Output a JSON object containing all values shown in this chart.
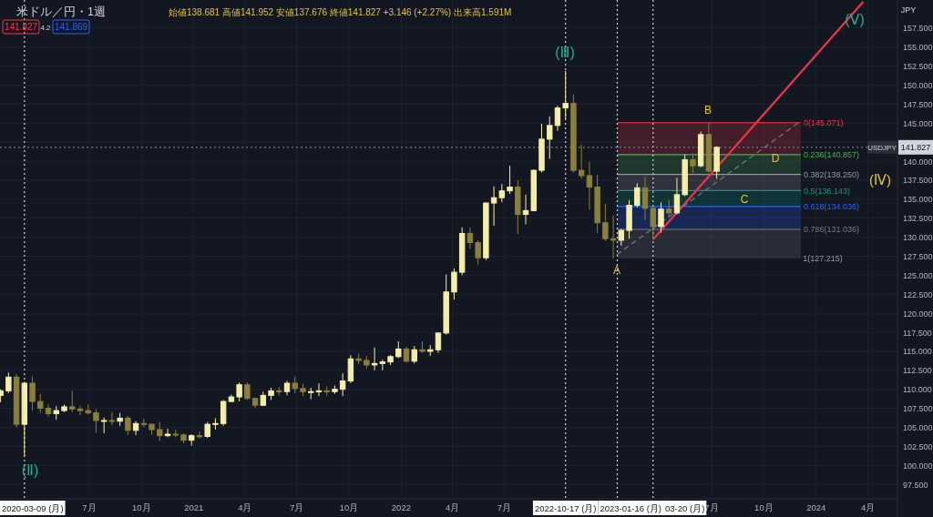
{
  "chart_data": {
    "type": "candlestick",
    "title": "米ドル／円・1週",
    "annotations": [
      "始値138.681 高値141.952 安値137.676 終値141.827 +3.146 (+2.27%) 出来高1.591M",
      "141.827",
      "4.2",
      "141.869",
      "JPY",
      "(Ⅱ)",
      "(Ⅲ)",
      "(Ⅳ)",
      "(Ⅴ)",
      "A",
      "B",
      "C",
      "D",
      {
        "text": "1(127.215)",
        "x": "2023-12-04",
        "y": 127.215
      }
    ],
    "x": [
      "2020-01-27",
      "2020-02-10",
      "2020-02-24",
      "2020-03-09",
      "2020-03-23",
      "2020-04-06",
      "2020-04-20",
      "2020-05-04",
      "2020-05-18",
      "2020-06-01",
      "2020-06-15",
      "2020-06-29",
      "2020-07-13",
      "2020-07-27",
      "2020-08-10",
      "2020-08-24",
      "2020-09-07",
      "2020-09-21",
      "2020-10-05",
      "2020-10-19",
      "2020-11-02",
      "2020-11-16",
      "2020-11-30",
      "2020-12-14",
      "2020-12-28",
      "2021-01-11",
      "2021-01-25",
      "2021-02-08",
      "2021-02-22",
      "2021-03-08",
      "2021-03-22",
      "2021-04-05",
      "2021-04-19",
      "2021-05-03",
      "2021-05-17",
      "2021-05-31",
      "2021-06-14",
      "2021-06-28",
      "2021-07-12",
      "2021-07-26",
      "2021-08-09",
      "2021-08-23",
      "2021-09-06",
      "2021-09-20",
      "2021-10-04",
      "2021-10-18",
      "2021-11-01",
      "2021-11-15",
      "2021-11-29",
      "2021-12-13",
      "2021-12-27",
      "2022-01-10",
      "2022-01-24",
      "2022-02-07",
      "2022-02-21",
      "2022-03-07",
      "2022-03-21",
      "2022-04-04",
      "2022-04-18",
      "2022-05-02",
      "2022-05-16",
      "2022-05-30",
      "2022-06-13",
      "2022-06-27",
      "2022-07-11",
      "2022-07-25",
      "2022-08-08",
      "2022-08-22",
      "2022-09-05",
      "2022-09-19",
      "2022-10-03",
      "2022-10-17",
      "2022-10-31",
      "2022-11-14",
      "2022-11-28",
      "2022-12-12",
      "2022-12-26",
      "2023-01-09",
      "2023-01-23",
      "2023-02-06",
      "2023-02-20",
      "2023-03-06",
      "2023-03-20",
      "2023-04-03",
      "2023-04-17",
      "2023-05-01",
      "2023-05-15",
      "2023-05-29",
      "2023-06-12",
      "2023-06-26",
      "2023-07-10"
    ],
    "ohlc": [
      [
        109.2,
        110.0,
        108.3,
        109.8
      ],
      [
        109.8,
        112.2,
        109.5,
        111.6
      ],
      [
        111.6,
        112.0,
        105.0,
        105.4
      ],
      [
        105.4,
        111.0,
        101.2,
        110.8
      ],
      [
        110.8,
        111.7,
        107.2,
        108.4
      ],
      [
        108.4,
        109.4,
        106.9,
        107.5
      ],
      [
        107.5,
        108.0,
        106.4,
        106.8
      ],
      [
        106.8,
        107.8,
        106.0,
        107.2
      ],
      [
        107.2,
        108.0,
        107.0,
        107.7
      ],
      [
        107.7,
        109.8,
        107.0,
        107.4
      ],
      [
        107.4,
        107.8,
        106.6,
        107.2
      ],
      [
        107.2,
        108.0,
        106.7,
        106.9
      ],
      [
        106.9,
        107.4,
        104.3,
        105.9
      ],
      [
        105.9,
        106.3,
        104.2,
        105.9
      ],
      [
        105.9,
        107.0,
        105.3,
        105.8
      ],
      [
        105.8,
        106.9,
        105.2,
        106.2
      ],
      [
        106.2,
        106.5,
        104.0,
        104.6
      ],
      [
        104.6,
        105.8,
        104.0,
        105.5
      ],
      [
        105.5,
        106.1,
        105.0,
        105.4
      ],
      [
        105.4,
        105.5,
        104.0,
        104.7
      ],
      [
        104.7,
        105.7,
        103.2,
        103.9
      ],
      [
        103.9,
        104.8,
        103.7,
        104.1
      ],
      [
        104.1,
        104.7,
        103.7,
        104.0
      ],
      [
        104.0,
        104.2,
        102.9,
        103.3
      ],
      [
        103.3,
        104.1,
        102.6,
        103.9
      ],
      [
        103.9,
        104.4,
        103.5,
        103.8
      ],
      [
        103.8,
        105.7,
        103.6,
        105.4
      ],
      [
        105.4,
        106.2,
        104.7,
        105.5
      ],
      [
        105.5,
        108.6,
        105.2,
        108.4
      ],
      [
        108.4,
        109.3,
        108.3,
        109.0
      ],
      [
        109.0,
        110.9,
        108.4,
        110.6
      ],
      [
        110.6,
        110.9,
        108.6,
        108.8
      ],
      [
        108.8,
        108.9,
        107.5,
        107.9
      ],
      [
        107.9,
        109.7,
        107.8,
        109.2
      ],
      [
        109.2,
        110.2,
        108.6,
        109.8
      ],
      [
        109.8,
        110.3,
        109.2,
        109.7
      ],
      [
        109.7,
        111.1,
        109.2,
        110.8
      ],
      [
        110.8,
        111.7,
        109.5,
        110.1
      ],
      [
        110.1,
        110.7,
        109.1,
        109.7
      ],
      [
        109.7,
        110.2,
        108.7,
        109.7
      ],
      [
        109.7,
        110.8,
        109.1,
        109.8
      ],
      [
        109.8,
        110.4,
        109.2,
        109.7
      ],
      [
        109.7,
        110.5,
        109.4,
        110.0
      ],
      [
        110.0,
        112.1,
        109.1,
        111.1
      ],
      [
        111.1,
        114.5,
        110.8,
        114.0
      ],
      [
        114.0,
        114.7,
        113.3,
        113.8
      ],
      [
        113.8,
        114.4,
        112.7,
        113.2
      ],
      [
        113.2,
        115.5,
        112.5,
        113.4
      ],
      [
        113.4,
        113.9,
        112.5,
        113.6
      ],
      [
        113.6,
        114.5,
        113.2,
        114.3
      ],
      [
        114.3,
        116.3,
        114.1,
        115.3
      ],
      [
        115.3,
        115.6,
        113.5,
        113.7
      ],
      [
        113.7,
        115.7,
        113.4,
        115.2
      ],
      [
        115.2,
        116.3,
        114.8,
        115.0
      ],
      [
        115.0,
        115.8,
        114.4,
        115.2
      ],
      [
        115.2,
        117.5,
        114.8,
        117.4
      ],
      [
        117.4,
        125.1,
        117.2,
        122.8
      ],
      [
        122.8,
        125.9,
        121.8,
        125.4
      ],
      [
        125.4,
        131.3,
        125.0,
        130.5
      ],
      [
        130.5,
        131.3,
        128.5,
        129.3
      ],
      [
        129.3,
        129.6,
        126.4,
        127.3
      ],
      [
        127.3,
        134.6,
        127.0,
        134.5
      ],
      [
        134.5,
        136.7,
        131.5,
        135.2
      ],
      [
        135.2,
        137.0,
        134.6,
        136.1
      ],
      [
        136.1,
        139.4,
        135.7,
        136.6
      ],
      [
        136.6,
        137.5,
        130.4,
        133.0
      ],
      [
        133.0,
        135.6,
        131.7,
        133.5
      ],
      [
        133.5,
        138.9,
        133.4,
        138.8
      ],
      [
        138.8,
        144.9,
        138.5,
        142.9
      ],
      [
        142.9,
        145.9,
        140.3,
        144.7
      ],
      [
        144.7,
        147.3,
        144.0,
        147.0
      ],
      [
        147.0,
        151.9,
        145.5,
        147.6
      ],
      [
        147.6,
        148.8,
        138.5,
        138.8
      ],
      [
        138.8,
        142.2,
        137.7,
        138.1
      ],
      [
        138.1,
        139.9,
        133.6,
        136.6
      ],
      [
        136.6,
        138.2,
        130.6,
        131.9
      ],
      [
        131.9,
        134.4,
        129.5,
        129.8
      ],
      [
        129.8,
        132.9,
        127.2,
        129.6
      ],
      [
        129.6,
        131.1,
        128.9,
        130.9
      ],
      [
        130.9,
        134.9,
        129.8,
        134.2
      ],
      [
        134.2,
        137.1,
        133.9,
        136.5
      ],
      [
        136.5,
        138.0,
        132.3,
        133.8
      ],
      [
        133.8,
        134.0,
        129.7,
        131.4
      ],
      [
        131.4,
        134.6,
        130.6,
        133.7
      ],
      [
        133.7,
        134.9,
        132.7,
        133.2
      ],
      [
        133.2,
        137.8,
        133.0,
        135.6
      ],
      [
        135.6,
        140.9,
        135.4,
        140.2
      ],
      [
        140.2,
        141.0,
        138.4,
        139.4
      ],
      [
        139.4,
        143.9,
        139.2,
        143.5
      ],
      [
        143.5,
        145.1,
        138.5,
        138.7
      ],
      [
        138.681,
        141.952,
        137.676,
        141.827
      ]
    ],
    "colors": [
      "#f5eeaa",
      "#f5eeaa",
      "#8a7f3c",
      "#f5eeaa",
      "#8a7f3c",
      "#8a7f3c",
      "#8a7f3c",
      "#f5eeaa",
      "#f5eeaa",
      "#8a7f3c",
      "#8a7f3c",
      "#8a7f3c",
      "#8a7f3c",
      "#f5eeaa",
      "#8a7f3c",
      "#f5eeaa",
      "#8a7f3c",
      "#f5eeaa",
      "#8a7f3c",
      "#8a7f3c",
      "#8a7f3c",
      "#f5eeaa",
      "#8a7f3c",
      "#8a7f3c",
      "#f5eeaa",
      "#8a7f3c",
      "#f5eeaa",
      "#f5eeaa",
      "#f5eeaa",
      "#f5eeaa",
      "#f5eeaa",
      "#8a7f3c",
      "#8a7f3c",
      "#f5eeaa",
      "#f5eeaa",
      "#8a7f3c",
      "#f5eeaa",
      "#8a7f3c",
      "#8a7f3c",
      "#f5eeaa",
      "#f5eeaa",
      "#8a7f3c",
      "#f5eeaa",
      "#f5eeaa",
      "#f5eeaa",
      "#8a7f3c",
      "#8a7f3c",
      "#f5eeaa",
      "#f5eeaa",
      "#f5eeaa",
      "#f5eeaa",
      "#8a7f3c",
      "#f5eeaa",
      "#8a7f3c",
      "#f5eeaa",
      "#f5eeaa",
      "#f5eeaa",
      "#f5eeaa",
      "#f5eeaa",
      "#8a7f3c",
      "#8a7f3c",
      "#f5eeaa",
      "#f5eeaa",
      "#f5eeaa",
      "#f5eeaa",
      "#8a7f3c",
      "#f5eeaa",
      "#f5eeaa",
      "#f5eeaa",
      "#f5eeaa",
      "#f5eeaa",
      "#f5eeaa",
      "#8a7f3c",
      "#8a7f3c",
      "#8a7f3c",
      "#8a7f3c",
      "#8a7f3c",
      "#8a7f3c",
      "#f5eeaa",
      "#f5eeaa",
      "#f5eeaa",
      "#8a7f3c",
      "#8a7f3c",
      "#f5eeaa",
      "#8a7f3c",
      "#f5eeaa",
      "#f5eeaa",
      "#8a7f3c",
      "#f5eeaa",
      "#8a7f3c",
      "#f5eeaa"
    ],
    "series": [
      {
        "type": "line",
        "x": [
          "2023-03-20",
          "2024-03-24"
        ],
        "values": [
          129.7,
          161.0
        ],
        "color": "#f23645",
        "line_style": "solid"
      },
      {
        "type": "line",
        "x": [
          "2023-01-15",
          "2023-12-05"
        ],
        "values": [
          127.7,
          145.3
        ],
        "color": "#787b86",
        "line_style": "dashed"
      }
    ],
    "bands": [
      {
        "axis": "y",
        "from": 145.071,
        "to": 140.857,
        "label": "0(145.071)",
        "color": "#f23645"
      },
      {
        "axis": "y",
        "from": 140.857,
        "to": 138.25,
        "label": "0.236(140.857)",
        "color": "#4caf50"
      },
      {
        "axis": "y",
        "from": 138.25,
        "to": 136.143,
        "label": "0.382(138.250)",
        "color": "#9598a1"
      },
      {
        "axis": "y",
        "from": 136.143,
        "to": 134.036,
        "label": "0.5(136.143)",
        "color": "#089981"
      },
      {
        "axis": "y",
        "from": 134.036,
        "to": 131.036,
        "label": "0.618(134.036)",
        "color": "#2962ff"
      },
      {
        "axis": "y",
        "from": 131.036,
        "to": 127.215,
        "label": "0.786(131.036)",
        "color": "#787b86"
      }
    ],
    "ref_lines": [
      {
        "axis": "x",
        "value": "2020-03-09",
        "label": "2020-03-09 (月)",
        "color": "#d1d4dc",
        "line_style": "dotted"
      },
      {
        "axis": "x",
        "value": "2022-10-17",
        "label": "2022-10-17 (月)",
        "color": "#d1d4dc",
        "line_style": "dotted"
      },
      {
        "axis": "x",
        "value": "2023-01-16",
        "label": "2023-01-16 (月)",
        "color": "#d1d4dc",
        "line_style": "dotted"
      },
      {
        "axis": "x",
        "value": "2023-03-20",
        "label": "03-20 (月)",
        "color": "#d1d4dc",
        "line_style": "dotted"
      },
      {
        "axis": "y",
        "value": 141.827,
        "label": "USDJPY",
        "color": "#787b86",
        "line_style": "dotted"
      }
    ],
    "xlim": [
      "2020-01-26",
      "2024-05-23"
    ],
    "xticks": [
      {
        "value": "2020-07-01",
        "label": "7月"
      },
      {
        "value": "2020-10-01",
        "label": "10月"
      },
      {
        "value": "2021-01-01",
        "label": "2021"
      },
      {
        "value": "2021-04-01",
        "label": "4月"
      },
      {
        "value": "2021-07-01",
        "label": "7月"
      },
      {
        "value": "2021-10-01",
        "label": "10月"
      },
      {
        "value": "2022-01-01",
        "label": "2022"
      },
      {
        "value": "2022-04-01",
        "label": "4月"
      },
      {
        "value": "2022-07-01",
        "label": "7月"
      },
      {
        "value": "2023-07-01",
        "label": "7月"
      },
      {
        "value": "2023-10-01",
        "label": "10月"
      },
      {
        "value": "2024-01-01",
        "label": "2024"
      },
      {
        "value": "2024-04-01",
        "label": "4月"
      }
    ],
    "ylim": [
      95.6,
      161.2
    ],
    "yticks": [
      {
        "value": 97.5,
        "label": "97.500"
      },
      {
        "value": 100,
        "label": "100.000"
      },
      {
        "value": 102.5,
        "label": "102.500"
      },
      {
        "value": 105,
        "label": "105.000"
      },
      {
        "value": 107.5,
        "label": "107.500"
      },
      {
        "value": 110,
        "label": "110.000"
      },
      {
        "value": 112.5,
        "label": "112.500"
      },
      {
        "value": 115,
        "label": "115.000"
      },
      {
        "value": 117.5,
        "label": "117.500"
      },
      {
        "value": 120,
        "label": "120.000"
      },
      {
        "value": 122.5,
        "label": "122.500"
      },
      {
        "value": 125,
        "label": "125.000"
      },
      {
        "value": 127.5,
        "label": "127.500"
      },
      {
        "value": 130,
        "label": "130.000"
      },
      {
        "value": 132.5,
        "label": "132.500"
      },
      {
        "value": 135,
        "label": "135.000"
      },
      {
        "value": 137.5,
        "label": "137.500"
      },
      {
        "value": 140,
        "label": "140.000"
      },
      {
        "value": 142.5,
        "label": null
      },
      {
        "value": 145,
        "label": "145.000"
      },
      {
        "value": 147.5,
        "label": "147.500"
      },
      {
        "value": 150,
        "label": "150.000"
      },
      {
        "value": 152.5,
        "label": "152.500"
      },
      {
        "value": 155,
        "label": "155.000"
      },
      {
        "value": 157.5,
        "label": "157.500"
      }
    ],
    "grid": true
  }
}
